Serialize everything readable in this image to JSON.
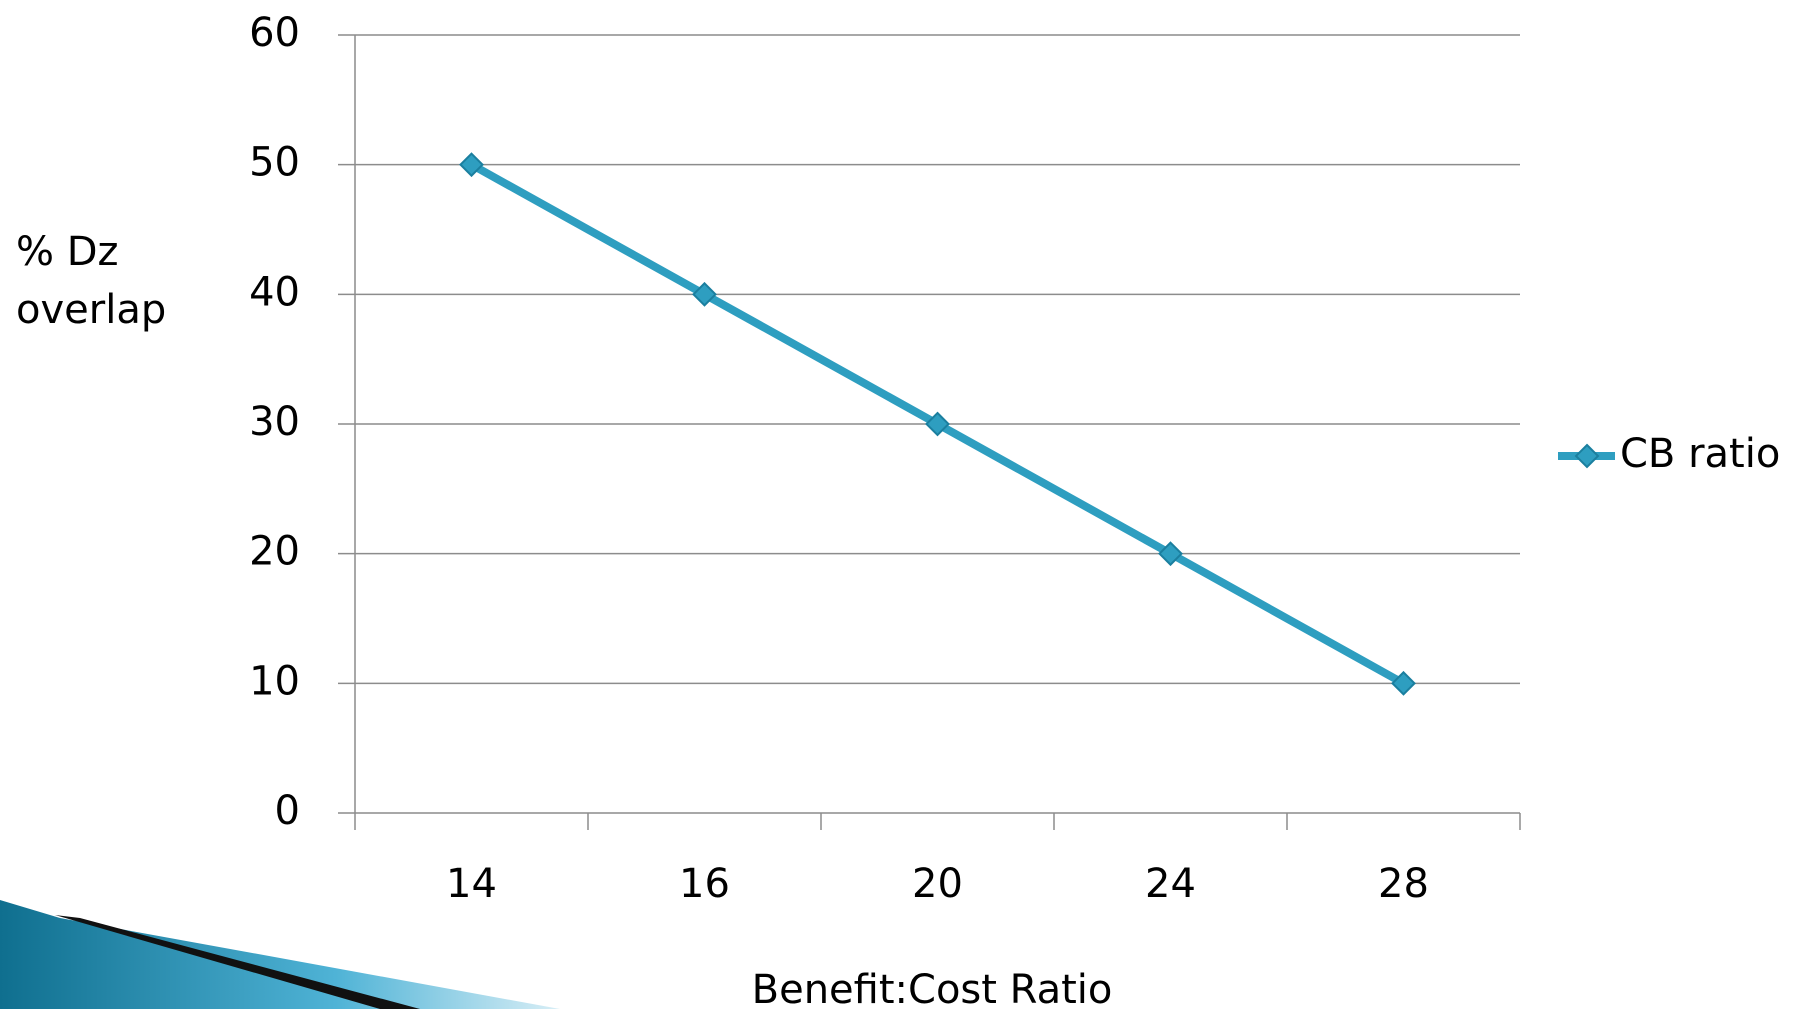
{
  "chart_data": {
    "type": "line",
    "x_label": "Benefit:Cost Ratio",
    "y_label": [
      "% Dz",
      "overlap"
    ],
    "categories": [
      "14",
      "16",
      "20",
      "24",
      "28"
    ],
    "series": [
      {
        "name": "CB ratio",
        "color": "#2e9ec0",
        "values": [
          50,
          40,
          30,
          20,
          10
        ]
      }
    ],
    "ylim": [
      0,
      60
    ],
    "yticks": [
      0,
      10,
      20,
      30,
      40,
      50,
      60
    ],
    "grid": true,
    "legend": "right"
  }
}
